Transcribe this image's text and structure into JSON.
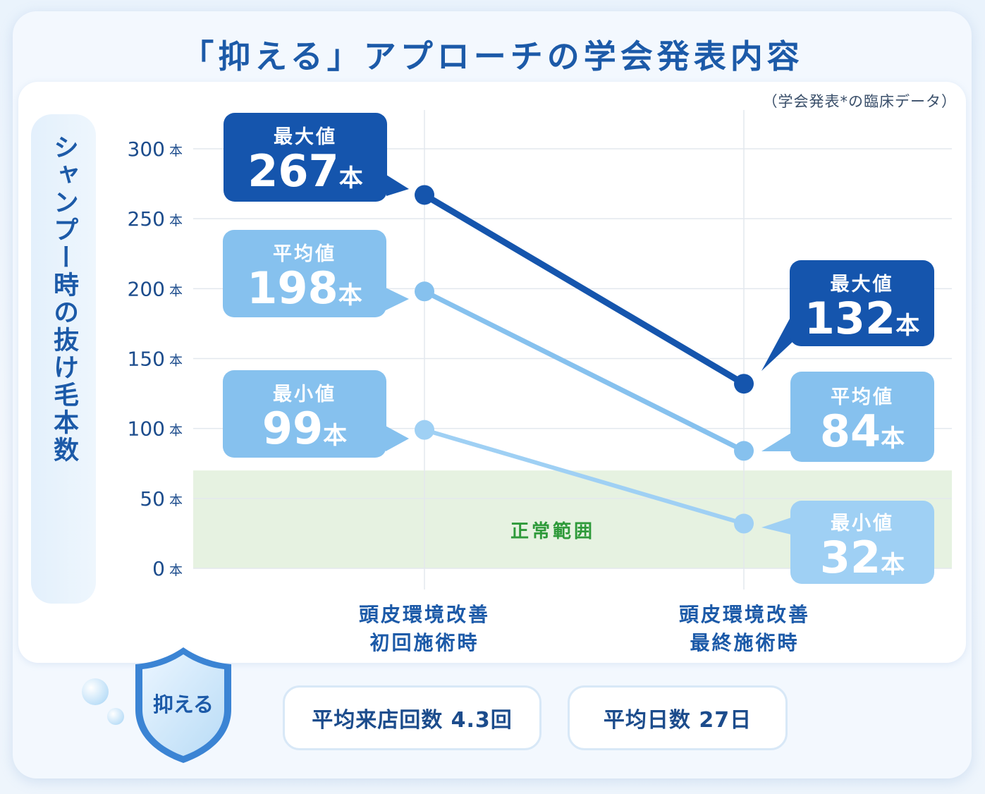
{
  "title": "「抑える」アプローチの学会発表内容",
  "note": "（学会発表*の臨床データ）",
  "badge": "抑える",
  "normal_range_label": "正常範囲",
  "stats": [
    "平均来店回数 4.3回",
    "平均日数 27日"
  ],
  "colors": {
    "max": "#1555ad",
    "avg": "#86c1ee",
    "min": "#9fd0f4",
    "normal": "#e6f2e1"
  },
  "chart_data": {
    "type": "line",
    "ylabel": "シャンプー時の抜け毛本数",
    "unit": "本",
    "ylim": [
      0,
      300
    ],
    "y_ticks": [
      0,
      50,
      100,
      150,
      200,
      250,
      300
    ],
    "y_tick_labels": [
      "0",
      "50",
      "100",
      "150",
      "200",
      "250",
      "300"
    ],
    "categories": [
      "頭皮環境改善\n初回施術時",
      "頭皮環境改善\n最終施術時"
    ],
    "normal_range": [
      0,
      70
    ],
    "series": [
      {
        "name": "最大値",
        "values": [
          267,
          132
        ],
        "labels": [
          "267",
          "132"
        ]
      },
      {
        "name": "平均値",
        "values": [
          198,
          84
        ],
        "labels": [
          "198",
          "84"
        ]
      },
      {
        "name": "最小値",
        "values": [
          99,
          32
        ],
        "labels": [
          "99",
          "32"
        ]
      }
    ]
  }
}
